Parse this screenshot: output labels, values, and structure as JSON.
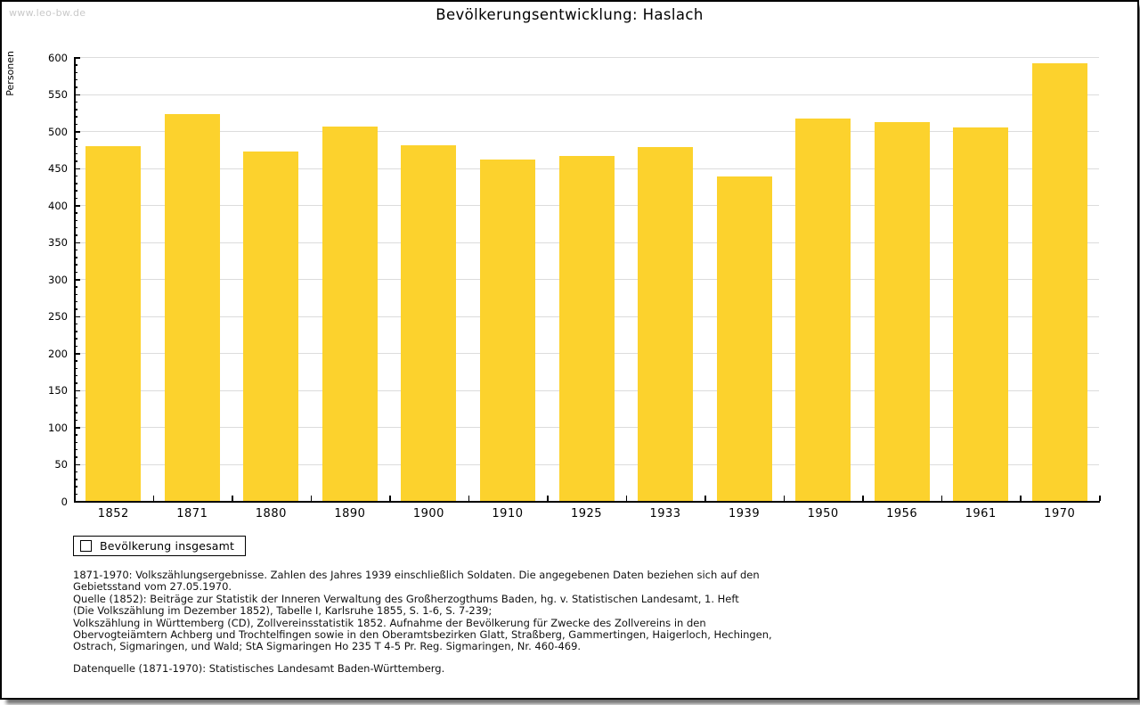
{
  "page": {
    "watermark": "www.leo-bw.de",
    "title": "Bevölkerungsentwicklung: Haslach"
  },
  "chart_data": {
    "type": "bar",
    "title": "Bevölkerungsentwicklung: Haslach",
    "ylabel": "Personen",
    "xlabel": "",
    "categories": [
      "1852",
      "1871",
      "1880",
      "1890",
      "1900",
      "1910",
      "1925",
      "1933",
      "1939",
      "1950",
      "1956",
      "1961",
      "1970"
    ],
    "values": [
      480,
      523,
      472,
      506,
      481,
      462,
      466,
      478,
      439,
      517,
      512,
      505,
      592
    ],
    "ylim": [
      0,
      600
    ],
    "ytick_step": 50,
    "yminor_step": 10,
    "grid": true,
    "legend_position": "bottom-left",
    "bar_color": "#FCD22D",
    "grid_color": "#DCDCDC",
    "axis_color": "#000000",
    "legend": {
      "label": "Bevölkerung insgesamt"
    }
  },
  "footnotes": {
    "lines": [
      "1871-1970: Volkszählungsergebnisse. Zahlen des Jahres 1939 einschließlich Soldaten. Die angegebenen Daten beziehen sich auf den",
      "Gebietsstand vom 27.05.1970.",
      "Quelle (1852): Beiträge zur Statistik der Inneren Verwaltung des Großherzogthums Baden, hg. v. Statistischen Landesamt, 1. Heft",
      "(Die Volkszählung im Dezember 1852), Tabelle I, Karlsruhe 1855, S. 1-6, S. 7-239;",
      "Volkszählung in Württemberg (CD), Zollvereinsstatistik 1852. Aufnahme der Bevölkerung für Zwecke des Zollvereins in den",
      "Obervogteiämtern Achberg und Trochtelfingen sowie in den Oberamtsbezirken Glatt, Straßberg, Gammertingen, Haigerloch, Hechingen,",
      "Ostrach, Sigmaringen, und Wald; StA Sigmaringen Ho 235 T 4-5 Pr. Reg. Sigmaringen, Nr. 460-469."
    ],
    "datasource": "Datenquelle (1871-1970): Statistisches Landesamt Baden-Württemberg."
  }
}
